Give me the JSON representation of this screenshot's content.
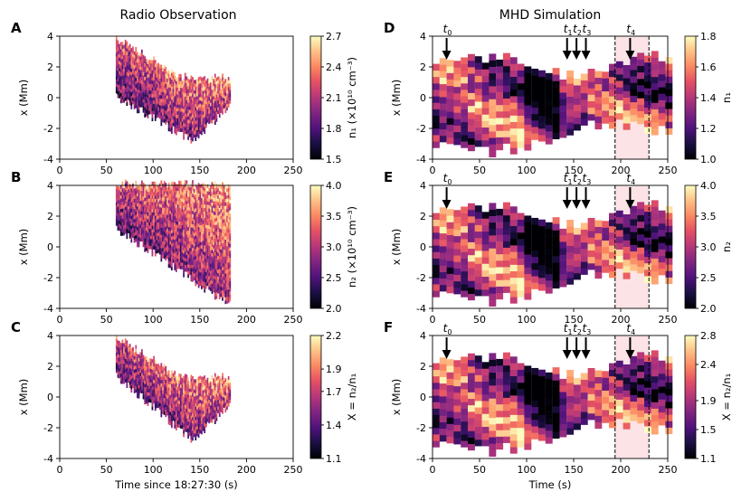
{
  "chart_data": [
    {
      "type": "heatmap",
      "panel": "A",
      "column_title": "Radio Observation",
      "xlim": [
        0,
        250
      ],
      "ylim": [
        -4,
        4
      ],
      "xticks": [
        0,
        50,
        100,
        150,
        200,
        250
      ],
      "yticks": [
        -4,
        -2,
        0,
        2,
        4
      ],
      "xlabel": "",
      "ylabel": "x (Mm)",
      "colorbar": {
        "label": "n₁ (×10¹⁰ cm⁻³)",
        "ticks": [
          1.5,
          1.8,
          2.1,
          2.4,
          2.7
        ],
        "range": [
          1.5,
          2.7
        ]
      },
      "data_extent": {
        "t_start": 60,
        "t_end": 182,
        "top_start": 3.8,
        "top_end": 1.2,
        "bottom_start": 0.1,
        "bottom_end": -0.6,
        "bottom_min": -2.8,
        "bottom_min_t": 140
      }
    },
    {
      "type": "heatmap",
      "panel": "B",
      "xlim": [
        0,
        250
      ],
      "ylim": [
        -4,
        4
      ],
      "xticks": [
        0,
        50,
        100,
        150,
        200,
        250
      ],
      "yticks": [
        -4,
        -2,
        0,
        2,
        4
      ],
      "ylabel": "x (Mm)",
      "colorbar": {
        "label": "n₂ (×10¹⁰ cm⁻³)",
        "ticks": [
          2.0,
          2.5,
          3.0,
          3.5,
          4.0
        ],
        "range": [
          2.0,
          4.0
        ]
      },
      "data_extent": {
        "t_start": 60,
        "t_end": 182,
        "top_start": 4.0,
        "top_end": 4.0,
        "bottom_start": 1.2,
        "bottom_end": -3.8,
        "bottom_min": -3.8,
        "bottom_min_t": 182
      }
    },
    {
      "type": "heatmap",
      "panel": "C",
      "xlim": [
        0,
        250
      ],
      "ylim": [
        -4,
        4
      ],
      "xticks": [
        0,
        50,
        100,
        150,
        200,
        250
      ],
      "yticks": [
        -4,
        -2,
        0,
        2,
        4
      ],
      "xlabel": "Time since 18:27:30 (s)",
      "ylabel": "x (Mm)",
      "colorbar": {
        "label": "X = n₂/n₁",
        "ticks": [
          1.1,
          1.4,
          1.7,
          1.9,
          2.2
        ],
        "range": [
          1.1,
          2.2
        ]
      },
      "data_extent": {
        "t_start": 60,
        "t_end": 182,
        "top_start": 3.8,
        "top_end": 1.2,
        "bottom_start": 1.4,
        "bottom_end": -0.6,
        "bottom_min": -2.8,
        "bottom_min_t": 140
      }
    },
    {
      "type": "heatmap",
      "panel": "D",
      "column_title": "MHD Simulation",
      "xlim": [
        0,
        250
      ],
      "ylim": [
        -4,
        4
      ],
      "xticks": [
        0,
        50,
        100,
        150,
        200,
        250
      ],
      "yticks": [
        -4,
        -2,
        0,
        2,
        4
      ],
      "ylabel": "x (Mm)",
      "colorbar": {
        "label": "n₁",
        "ticks": [
          1.0,
          1.2,
          1.4,
          1.6,
          1.8
        ],
        "range": [
          1.0,
          1.8
        ]
      },
      "markers": [
        {
          "label": "t0",
          "t": 15
        },
        {
          "label": "t1",
          "t": 143
        },
        {
          "label": "t2",
          "t": 153
        },
        {
          "label": "t3",
          "t": 163
        },
        {
          "label": "t4",
          "t": 210
        }
      ],
      "highlight": {
        "t_start": 194,
        "t_end": 230
      }
    },
    {
      "type": "heatmap",
      "panel": "E",
      "xlim": [
        0,
        250
      ],
      "ylim": [
        -4,
        4
      ],
      "xticks": [
        0,
        50,
        100,
        150,
        200,
        250
      ],
      "yticks": [
        -4,
        -2,
        0,
        2,
        4
      ],
      "ylabel": "x (Mm)",
      "colorbar": {
        "label": "n₂",
        "ticks": [
          2.0,
          2.5,
          3.0,
          3.5,
          4.0
        ],
        "range": [
          2.0,
          4.0
        ]
      },
      "markers": [
        {
          "label": "t0",
          "t": 15
        },
        {
          "label": "t1",
          "t": 143
        },
        {
          "label": "t2",
          "t": 153
        },
        {
          "label": "t3",
          "t": 163
        },
        {
          "label": "t4",
          "t": 210
        }
      ],
      "highlight": {
        "t_start": 194,
        "t_end": 230
      }
    },
    {
      "type": "heatmap",
      "panel": "F",
      "xlim": [
        0,
        250
      ],
      "ylim": [
        -4,
        4
      ],
      "xticks": [
        0,
        50,
        100,
        150,
        200,
        250
      ],
      "yticks": [
        -4,
        -2,
        0,
        2,
        4
      ],
      "xlabel": "Time (s)",
      "ylabel": "x (Mm)",
      "colorbar": {
        "label": "X = n₂/n₁",
        "ticks": [
          1.1,
          1.5,
          1.9,
          2.4,
          2.8
        ],
        "range": [
          1.1,
          2.8
        ]
      },
      "markers": [
        {
          "label": "t0",
          "t": 15
        },
        {
          "label": "t1",
          "t": 143
        },
        {
          "label": "t2",
          "t": 153
        },
        {
          "label": "t3",
          "t": 163
        },
        {
          "label": "t4",
          "t": 210
        }
      ],
      "highlight": {
        "t_start": 194,
        "t_end": 230
      }
    }
  ],
  "colors": {
    "highlight": "#fbe3e6",
    "frame": "#000000"
  }
}
